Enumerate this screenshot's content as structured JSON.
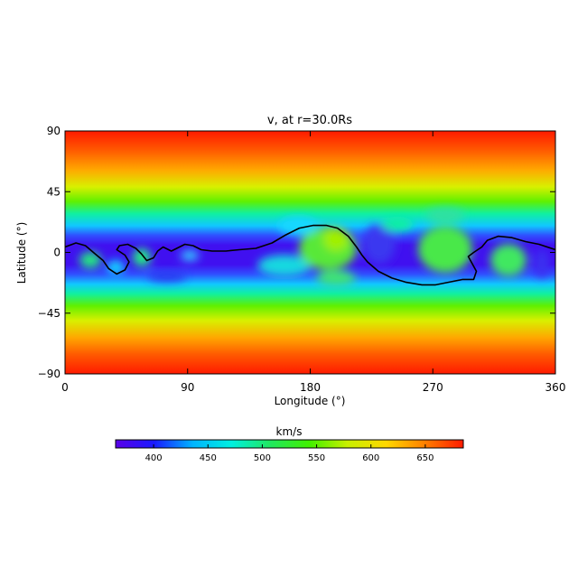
{
  "chart_data": {
    "type": "heatmap",
    "title": "v, at r=30.0Rs",
    "xlabel": "Longitude (°)",
    "ylabel": "Latitude (°)",
    "xlim": [
      0,
      360
    ],
    "ylim": [
      -90,
      90
    ],
    "x_ticks": [
      0,
      90,
      180,
      270,
      360
    ],
    "y_ticks": [
      90,
      45,
      0,
      -45,
      -90
    ],
    "x_tick_labels": [
      "0",
      "90",
      "180",
      "270",
      "360"
    ],
    "y_tick_labels": [
      "90",
      "45",
      "0",
      "−45",
      "−90"
    ],
    "colorbar": {
      "label": "km/s",
      "range": [
        365,
        685
      ],
      "ticks": [
        400,
        450,
        500,
        550,
        600,
        650
      ],
      "tick_labels": [
        "400",
        "450",
        "500",
        "550",
        "600",
        "650"
      ],
      "colormap": [
        "#5a00e8",
        "#1a1aff",
        "#00b4ff",
        "#00f0e0",
        "#20e860",
        "#40f000",
        "#c8f000",
        "#ffd800",
        "#ff8000",
        "#ff1a00"
      ]
    },
    "neutral_line": {
      "color": "#000000",
      "points": [
        [
          0,
          4
        ],
        [
          8,
          7
        ],
        [
          15,
          5
        ],
        [
          22,
          -1
        ],
        [
          28,
          -6
        ],
        [
          32,
          -12
        ],
        [
          38,
          -16
        ],
        [
          44,
          -13
        ],
        [
          47,
          -7
        ],
        [
          44,
          -2
        ],
        [
          38,
          2
        ],
        [
          40,
          5
        ],
        [
          46,
          6
        ],
        [
          52,
          3
        ],
        [
          56,
          -1
        ],
        [
          60,
          -6
        ],
        [
          65,
          -4
        ],
        [
          68,
          1
        ],
        [
          72,
          4
        ],
        [
          78,
          1
        ],
        [
          82,
          3
        ],
        [
          88,
          6
        ],
        [
          94,
          5
        ],
        [
          100,
          2
        ],
        [
          108,
          1
        ],
        [
          118,
          1
        ],
        [
          128,
          2
        ],
        [
          140,
          3
        ],
        [
          152,
          7
        ],
        [
          162,
          13
        ],
        [
          172,
          18
        ],
        [
          182,
          20
        ],
        [
          192,
          20
        ],
        [
          200,
          18
        ],
        [
          208,
          12
        ],
        [
          214,
          4
        ],
        [
          218,
          -2
        ],
        [
          222,
          -7
        ],
        [
          230,
          -14
        ],
        [
          240,
          -19
        ],
        [
          250,
          -22
        ],
        [
          262,
          -24
        ],
        [
          272,
          -24
        ],
        [
          282,
          -22
        ],
        [
          292,
          -20
        ],
        [
          300,
          -20
        ],
        [
          302,
          -14
        ],
        [
          296,
          -3
        ],
        [
          300,
          0
        ],
        [
          306,
          4
        ],
        [
          310,
          9
        ],
        [
          318,
          12
        ],
        [
          328,
          11
        ],
        [
          338,
          8
        ],
        [
          348,
          6
        ],
        [
          360,
          2
        ]
      ]
    }
  }
}
